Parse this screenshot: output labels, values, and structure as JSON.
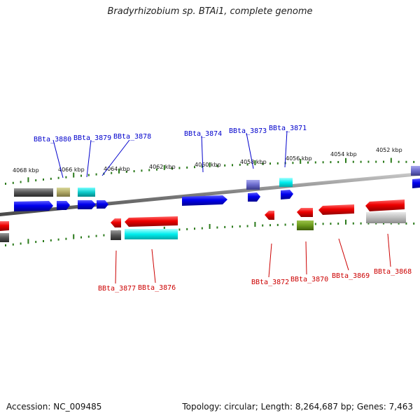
{
  "title": "Bradyrhizobium sp. BTAi1, complete genome",
  "footer": {
    "accession": "Accession: NC_009485",
    "summary": "Topology: circular; Length: 8,264,687 bp; Genes: 7,463"
  },
  "colors": {
    "backbone": "#8a8a8a",
    "tick": "#2a7a1a",
    "forward_label": "#0000cc",
    "reverse_label": "#cc0000"
  },
  "ruler": [
    {
      "label": "4068 kbp"
    },
    {
      "label": "4066 kbp"
    },
    {
      "label": "4064 kbp"
    },
    {
      "label": "4062 kbp"
    },
    {
      "label": "4060 kbp"
    },
    {
      "label": "4058 kbp"
    },
    {
      "label": "4056 kbp"
    },
    {
      "label": "4054 kbp"
    },
    {
      "label": "4052 kbp"
    }
  ],
  "forward_labels": [
    {
      "id": "BBta_3880"
    },
    {
      "id": "BBta_3879"
    },
    {
      "id": "BBta_3878"
    },
    {
      "id": "BBta_3874"
    },
    {
      "id": "BBta_3873"
    },
    {
      "id": "BBta_3871"
    }
  ],
  "reverse_labels": [
    {
      "id": "BBta_3877"
    },
    {
      "id": "BBta_3876"
    },
    {
      "id": "BBta_3872"
    },
    {
      "id": "BBta_3870"
    },
    {
      "id": "BBta_3869"
    },
    {
      "id": "BBta_3868"
    }
  ]
}
